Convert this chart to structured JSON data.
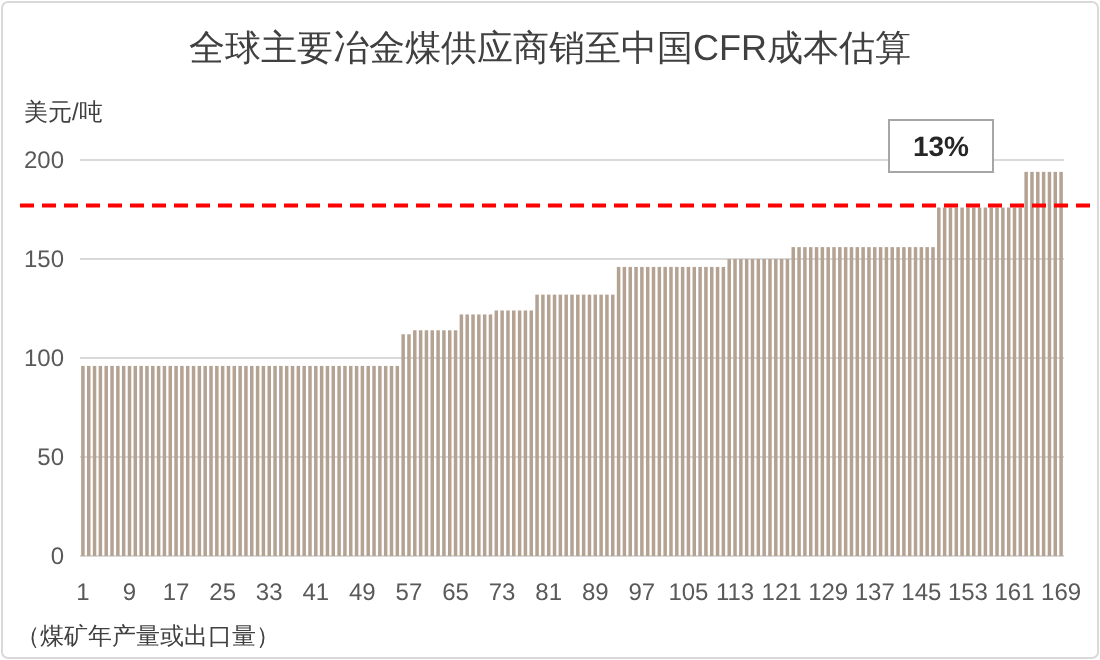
{
  "chart_data": {
    "type": "bar",
    "title": "全球主要冶金煤供应商销至中国CFR成本估算",
    "ylabel": "美元/吨",
    "xlabel": "（煤矿年产量或出口量）",
    "categories": [
      "1",
      null,
      null,
      null,
      null,
      null,
      null,
      null,
      "9",
      null,
      null,
      null,
      null,
      null,
      null,
      null,
      "17",
      null,
      null,
      null,
      null,
      null,
      null,
      null,
      "25",
      null,
      null,
      null,
      null,
      null,
      null,
      null,
      "33",
      null,
      null,
      null,
      null,
      null,
      null,
      null,
      "41",
      null,
      null,
      null,
      null,
      null,
      null,
      null,
      "49",
      null,
      null,
      null,
      null,
      null,
      null,
      null,
      "57",
      null,
      null,
      null,
      null,
      null,
      null,
      null,
      "65",
      null,
      null,
      null,
      null,
      null,
      null,
      null,
      "73",
      null,
      null,
      null,
      null,
      null,
      null,
      null,
      "81",
      null,
      null,
      null,
      null,
      null,
      null,
      null,
      "89",
      null,
      null,
      null,
      null,
      null,
      null,
      null,
      "97",
      null,
      null,
      null,
      null,
      null,
      null,
      null,
      "105",
      null,
      null,
      null,
      null,
      null,
      null,
      null,
      "113",
      null,
      null,
      null,
      null,
      null,
      null,
      null,
      "121",
      null,
      null,
      null,
      null,
      null,
      null,
      null,
      "129",
      null,
      null,
      null,
      null,
      null,
      null,
      null,
      "137",
      null,
      null,
      null,
      null,
      null,
      null,
      null,
      "145",
      null,
      null,
      null,
      null,
      null,
      null,
      null,
      "153",
      null,
      null,
      null,
      null,
      null,
      null,
      null,
      "161",
      null,
      null,
      null,
      null,
      null,
      null,
      null,
      "169"
    ],
    "values": [
      96,
      96,
      96,
      96,
      96,
      96,
      96,
      96,
      96,
      96,
      96,
      96,
      96,
      96,
      96,
      96,
      96,
      96,
      96,
      96,
      96,
      96,
      96,
      96,
      96,
      96,
      96,
      96,
      96,
      96,
      96,
      96,
      96,
      96,
      96,
      96,
      96,
      96,
      96,
      96,
      96,
      96,
      96,
      96,
      96,
      96,
      96,
      96,
      96,
      96,
      96,
      96,
      96,
      96,
      96,
      112,
      112,
      114,
      114,
      114,
      114,
      114,
      114,
      114,
      114,
      122,
      122,
      122,
      122,
      122,
      122,
      124,
      124,
      124,
      124,
      124,
      124,
      124,
      132,
      132,
      132,
      132,
      132,
      132,
      132,
      132,
      132,
      132,
      132,
      132,
      132,
      132,
      146,
      146,
      146,
      146,
      146,
      146,
      146,
      146,
      146,
      146,
      146,
      146,
      146,
      146,
      146,
      146,
      146,
      146,
      146,
      150,
      150,
      150,
      150,
      150,
      150,
      150,
      150,
      150,
      150,
      150,
      156,
      156,
      156,
      156,
      156,
      156,
      156,
      156,
      156,
      156,
      156,
      156,
      156,
      156,
      156,
      156,
      156,
      156,
      156,
      156,
      156,
      156,
      156,
      156,
      156,
      176,
      176,
      176,
      176,
      176,
      176,
      176,
      176,
      176,
      176,
      176,
      176,
      176,
      176,
      176,
      194,
      194,
      194,
      194,
      194,
      194,
      194
    ],
    "color": "#b4a293",
    "ylim": [
      0,
      200
    ],
    "yticks": [
      0,
      50,
      100,
      150,
      200
    ],
    "grid": "y",
    "ref_lines": [
      {
        "axis": "y",
        "value": 177,
        "color": "#ff0000",
        "line_style": "dashed"
      }
    ],
    "annotations": [
      "13%"
    ]
  }
}
